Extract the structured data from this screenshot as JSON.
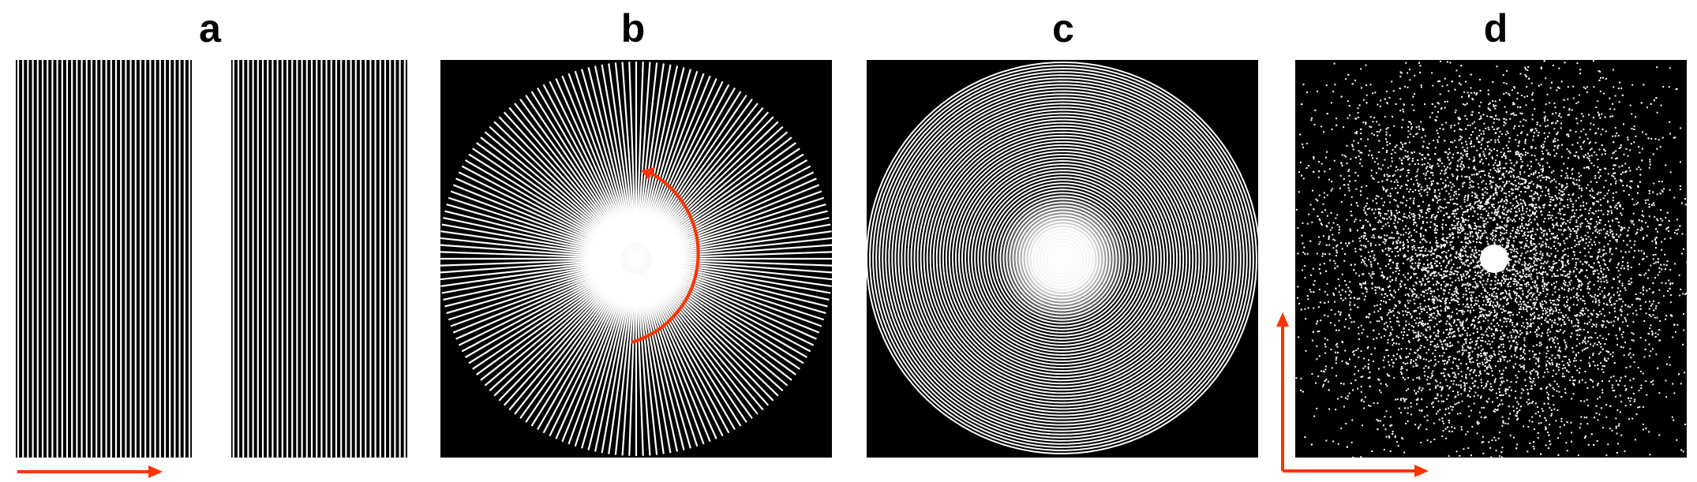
{
  "panels": [
    {
      "label": "a",
      "pattern": "vertical-line-grating-with-gap"
    },
    {
      "label": "b",
      "pattern": "radial-spokes-with-bright-center"
    },
    {
      "label": "c",
      "pattern": "spiral-with-bright-center"
    },
    {
      "label": "d",
      "pattern": "random-dots-dense-center"
    }
  ],
  "colors": {
    "background": "#000000",
    "lines": "#ffffff",
    "arrows": "#ff3300"
  },
  "arrows": {
    "a": "horizontal-right-arrow",
    "b": "circular-arc-arrow",
    "d": "two-axis-arrows-up-and-right"
  }
}
